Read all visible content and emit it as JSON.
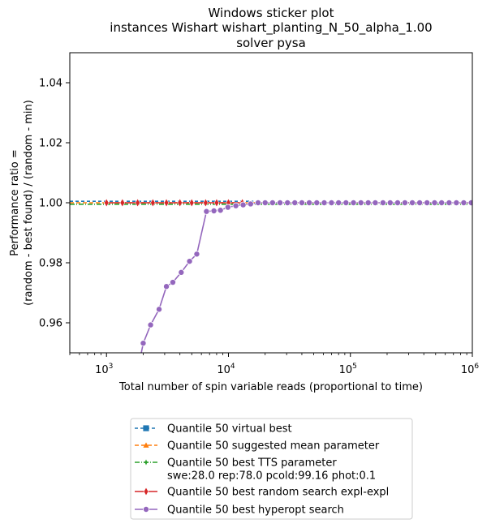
{
  "chart_data": {
    "type": "line",
    "title_lines": [
      "Windows sticker plot",
      "instances Wishart wishart_planting_N_50_alpha_1.00",
      "solver pysa"
    ],
    "xlabel": "Total number of spin variable reads (proportional to time)",
    "ylabel_lines": [
      "Performance ratio =",
      "(random - best found) / (random - min)"
    ],
    "xscale": "log",
    "xlim": [
      500,
      1000000
    ],
    "ylim": [
      0.95,
      1.05
    ],
    "grid": false,
    "legend_position": "below",
    "x_ticks": [
      {
        "value": 1000,
        "base": "10",
        "exp": "3"
      },
      {
        "value": 10000,
        "base": "10",
        "exp": "4"
      },
      {
        "value": 100000,
        "base": "10",
        "exp": "5"
      },
      {
        "value": 1000000,
        "base": "10",
        "exp": "6"
      }
    ],
    "y_ticks": [
      {
        "value": 0.96,
        "label": "0.96"
      },
      {
        "value": 0.98,
        "label": "0.98"
      },
      {
        "value": 1.0,
        "label": "1.00"
      },
      {
        "value": 1.02,
        "label": "1.02"
      },
      {
        "value": 1.04,
        "label": "1.04"
      }
    ],
    "series": [
      {
        "name": "Quantile 50 virtual best",
        "color": "#1f77b4",
        "marker": "square",
        "dash": "4,3",
        "show_markers": false,
        "x": [
          500,
          16000
        ],
        "y": [
          1.0005,
          1.0005
        ]
      },
      {
        "name": "Quantile 50 suggested mean parameter",
        "color": "#ff7f0e",
        "marker": "triangle",
        "dash": "5,3",
        "show_markers": false,
        "x": [
          500,
          1000000
        ],
        "y": [
          1.0,
          1.0
        ]
      },
      {
        "name": "Quantile 50 best TTS parameter\nswe:28.0 rep:78.0 pcold:99.16 phot:0.1",
        "color": "#2ca02c",
        "marker": "star",
        "dash": "6,2,1,2",
        "show_markers": false,
        "x": [
          500,
          1000000
        ],
        "y": [
          0.9995,
          0.9995
        ]
      },
      {
        "name": "Quantile 50  best random search expl-expl",
        "color": "#d62728",
        "marker": "diamond",
        "dash": "",
        "show_markers": true,
        "x": [
          1000,
          1350,
          1800,
          2400,
          3100,
          4000,
          5000,
          6500,
          8000,
          10000,
          13000
        ],
        "y": [
          1.0,
          1.0,
          1.0,
          1.0,
          1.0,
          1.0,
          1.0,
          1.0,
          1.0,
          1.0,
          1.0
        ]
      },
      {
        "name": "Quantile 50 best hyperopt search",
        "color": "#9467bd",
        "marker": "circle",
        "dash": "",
        "show_markers": true,
        "x": [
          1800,
          2000,
          2300,
          2700,
          3100,
          3500,
          4100,
          4800,
          5500,
          6600,
          7600,
          8600,
          9900,
          11500,
          13200,
          15200,
          17500,
          20000,
          23000,
          26500,
          30500,
          35000,
          40000,
          46000,
          53000,
          61000,
          70000,
          80000,
          92000,
          106000,
          122000,
          140000,
          160000,
          185000,
          212000,
          244000,
          280000,
          322000,
          370000,
          425000,
          490000,
          560000,
          645000,
          740000,
          850000,
          980000
        ],
        "y": [
          0.944,
          0.9532,
          0.9593,
          0.9645,
          0.9721,
          0.9735,
          0.9768,
          0.9805,
          0.9829,
          0.9971,
          0.9973,
          0.9975,
          0.9985,
          0.999,
          0.9993,
          0.9996,
          1.0,
          1.0,
          1.0,
          1.0,
          1.0,
          1.0,
          1.0,
          1.0,
          1.0,
          1.0,
          1.0,
          1.0,
          1.0,
          1.0,
          1.0,
          1.0,
          1.0,
          1.0,
          1.0,
          1.0,
          1.0,
          1.0,
          1.0,
          1.0,
          1.0,
          1.0,
          1.0,
          1.0,
          1.0,
          1.0
        ]
      }
    ]
  }
}
